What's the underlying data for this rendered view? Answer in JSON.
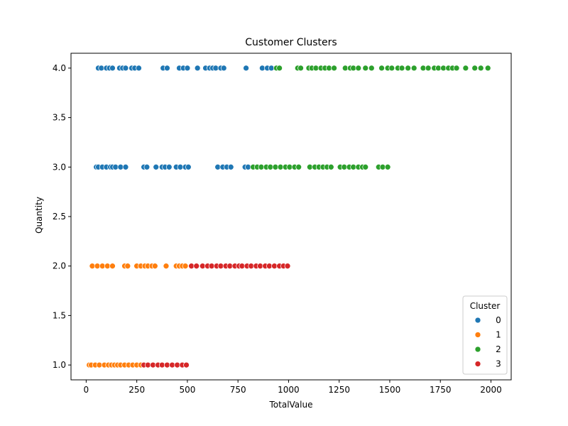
{
  "chart_data": {
    "type": "scatter",
    "title": "Customer Clusters",
    "xlabel": "TotalValue",
    "ylabel": "Quantity",
    "xlim": [
      -75,
      2100
    ],
    "ylim": [
      0.85,
      4.15
    ],
    "xticks": [
      0,
      250,
      500,
      750,
      1000,
      1250,
      1500,
      1750,
      2000
    ],
    "yticks": [
      1.0,
      1.5,
      2.0,
      2.5,
      3.0,
      3.5,
      4.0
    ],
    "xtick_labels": [
      "0",
      "250",
      "500",
      "750",
      "1000",
      "1250",
      "1500",
      "1750",
      "2000"
    ],
    "ytick_labels": [
      "1.0",
      "1.5",
      "2.0",
      "2.5",
      "3.0",
      "3.5",
      "4.0"
    ],
    "grid": false,
    "legend": {
      "title": "Cluster",
      "placement": "lower-right"
    },
    "series": [
      {
        "name": "0",
        "color": "#1f77b4",
        "points": [
          [
            60,
            4
          ],
          [
            75,
            4
          ],
          [
            100,
            4
          ],
          [
            115,
            4
          ],
          [
            130,
            4
          ],
          [
            165,
            4
          ],
          [
            180,
            4
          ],
          [
            195,
            4
          ],
          [
            225,
            4
          ],
          [
            240,
            4
          ],
          [
            260,
            4
          ],
          [
            380,
            4
          ],
          [
            400,
            4
          ],
          [
            460,
            4
          ],
          [
            480,
            4
          ],
          [
            500,
            4
          ],
          [
            550,
            4
          ],
          [
            590,
            4
          ],
          [
            610,
            4
          ],
          [
            625,
            4
          ],
          [
            640,
            4
          ],
          [
            665,
            4
          ],
          [
            680,
            4
          ],
          [
            790,
            4
          ],
          [
            870,
            4
          ],
          [
            895,
            4
          ],
          [
            915,
            4
          ],
          [
            50,
            3
          ],
          [
            60,
            3
          ],
          [
            80,
            3
          ],
          [
            100,
            3
          ],
          [
            120,
            3
          ],
          [
            130,
            3
          ],
          [
            145,
            3
          ],
          [
            170,
            3
          ],
          [
            195,
            3
          ],
          [
            285,
            3
          ],
          [
            300,
            3
          ],
          [
            345,
            3
          ],
          [
            375,
            3
          ],
          [
            390,
            3
          ],
          [
            410,
            3
          ],
          [
            445,
            3
          ],
          [
            465,
            3
          ],
          [
            490,
            3
          ],
          [
            505,
            3
          ],
          [
            650,
            3
          ],
          [
            675,
            3
          ],
          [
            695,
            3
          ],
          [
            715,
            3
          ],
          [
            785,
            3
          ],
          [
            800,
            3
          ]
        ]
      },
      {
        "name": "1",
        "color": "#ff7f0e",
        "points": [
          [
            30,
            2
          ],
          [
            55,
            2
          ],
          [
            80,
            2
          ],
          [
            105,
            2
          ],
          [
            130,
            2
          ],
          [
            190,
            2
          ],
          [
            205,
            2
          ],
          [
            250,
            2
          ],
          [
            270,
            2
          ],
          [
            290,
            2
          ],
          [
            305,
            2
          ],
          [
            325,
            2
          ],
          [
            340,
            2
          ],
          [
            395,
            2
          ],
          [
            445,
            2
          ],
          [
            460,
            2
          ],
          [
            475,
            2
          ],
          [
            490,
            2
          ],
          [
            15,
            1
          ],
          [
            25,
            1
          ],
          [
            45,
            1
          ],
          [
            65,
            1
          ],
          [
            90,
            1
          ],
          [
            110,
            1
          ],
          [
            125,
            1
          ],
          [
            140,
            1
          ],
          [
            155,
            1
          ],
          [
            170,
            1
          ],
          [
            190,
            1
          ],
          [
            210,
            1
          ],
          [
            230,
            1
          ],
          [
            250,
            1
          ],
          [
            270,
            1
          ]
        ]
      },
      {
        "name": "2",
        "color": "#2ca02c",
        "points": [
          [
            940,
            4
          ],
          [
            955,
            4
          ],
          [
            1045,
            4
          ],
          [
            1060,
            4
          ],
          [
            1100,
            4
          ],
          [
            1115,
            4
          ],
          [
            1135,
            4
          ],
          [
            1160,
            4
          ],
          [
            1180,
            4
          ],
          [
            1200,
            4
          ],
          [
            1225,
            4
          ],
          [
            1280,
            4
          ],
          [
            1305,
            4
          ],
          [
            1320,
            4
          ],
          [
            1345,
            4
          ],
          [
            1380,
            4
          ],
          [
            1410,
            4
          ],
          [
            1460,
            4
          ],
          [
            1490,
            4
          ],
          [
            1510,
            4
          ],
          [
            1540,
            4
          ],
          [
            1560,
            4
          ],
          [
            1590,
            4
          ],
          [
            1620,
            4
          ],
          [
            1665,
            4
          ],
          [
            1690,
            4
          ],
          [
            1720,
            4
          ],
          [
            1740,
            4
          ],
          [
            1765,
            4
          ],
          [
            1790,
            4
          ],
          [
            1810,
            4
          ],
          [
            1830,
            4
          ],
          [
            1875,
            4
          ],
          [
            1920,
            4
          ],
          [
            1950,
            4
          ],
          [
            1985,
            4
          ],
          [
            825,
            3
          ],
          [
            845,
            3
          ],
          [
            865,
            3
          ],
          [
            890,
            3
          ],
          [
            910,
            3
          ],
          [
            935,
            3
          ],
          [
            960,
            3
          ],
          [
            985,
            3
          ],
          [
            1005,
            3
          ],
          [
            1030,
            3
          ],
          [
            1050,
            3
          ],
          [
            1105,
            3
          ],
          [
            1130,
            3
          ],
          [
            1150,
            3
          ],
          [
            1170,
            3
          ],
          [
            1190,
            3
          ],
          [
            1210,
            3
          ],
          [
            1255,
            3
          ],
          [
            1275,
            3
          ],
          [
            1300,
            3
          ],
          [
            1320,
            3
          ],
          [
            1345,
            3
          ],
          [
            1365,
            3
          ],
          [
            1380,
            3
          ],
          [
            1445,
            3
          ],
          [
            1465,
            3
          ],
          [
            1490,
            3
          ]
        ]
      },
      {
        "name": "3",
        "color": "#d62728",
        "points": [
          [
            520,
            2
          ],
          [
            545,
            2
          ],
          [
            575,
            2
          ],
          [
            600,
            2
          ],
          [
            620,
            2
          ],
          [
            645,
            2
          ],
          [
            665,
            2
          ],
          [
            690,
            2
          ],
          [
            710,
            2
          ],
          [
            735,
            2
          ],
          [
            755,
            2
          ],
          [
            770,
            2
          ],
          [
            795,
            2
          ],
          [
            815,
            2
          ],
          [
            840,
            2
          ],
          [
            860,
            2
          ],
          [
            885,
            2
          ],
          [
            905,
            2
          ],
          [
            930,
            2
          ],
          [
            955,
            2
          ],
          [
            975,
            2
          ],
          [
            995,
            2
          ],
          [
            285,
            1
          ],
          [
            305,
            1
          ],
          [
            330,
            1
          ],
          [
            355,
            1
          ],
          [
            375,
            1
          ],
          [
            400,
            1
          ],
          [
            425,
            1
          ],
          [
            450,
            1
          ],
          [
            475,
            1
          ],
          [
            495,
            1
          ]
        ]
      }
    ]
  }
}
